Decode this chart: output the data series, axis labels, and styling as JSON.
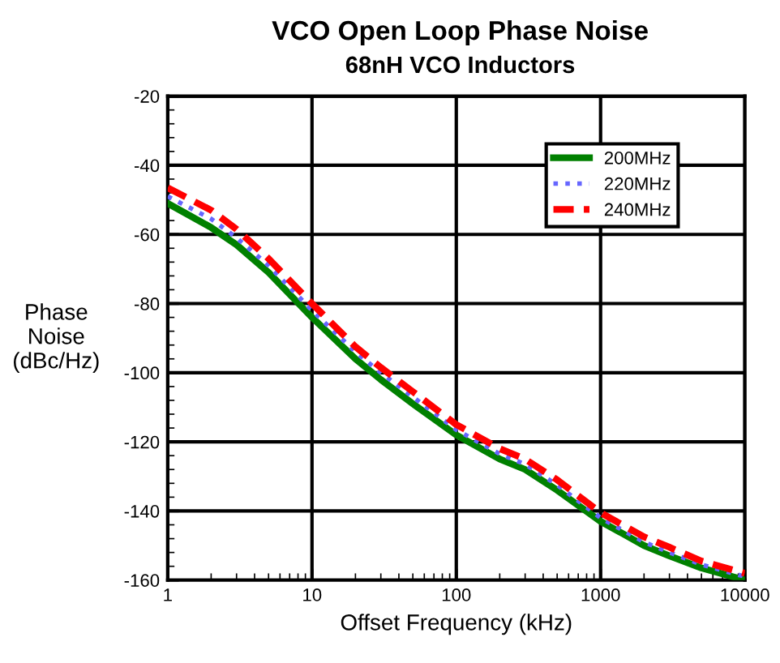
{
  "chart_data": {
    "type": "line",
    "title": "VCO Open Loop Phase Noise",
    "subtitle": "68nH VCO Inductors",
    "xlabel": "Offset Frequency (kHz)",
    "ylabel": "Phase\nNoise\n(dBc/Hz)",
    "log": "x",
    "x": [
      1,
      2,
      3,
      5,
      10,
      20,
      30,
      50,
      100,
      200,
      300,
      500,
      1000,
      2000,
      3000,
      5000,
      10000
    ],
    "series": [
      {
        "name": "200MHz",
        "color": "#008000",
        "line_style": "solid",
        "values": [
          -51,
          -58,
          -63,
          -71,
          -84,
          -96,
          -102,
          -109,
          -118,
          -125,
          -128,
          -134,
          -143,
          -150,
          -153,
          -156.5,
          -160
        ]
      },
      {
        "name": "220MHz",
        "color": "#6666ff",
        "line_style": "dotted",
        "values": [
          -49,
          -55.5,
          -61,
          -69,
          -82,
          -94,
          -100,
          -107,
          -116.5,
          -123.5,
          -126.5,
          -132.5,
          -142,
          -149,
          -152,
          -155.5,
          -159
        ]
      },
      {
        "name": "240MHz",
        "color": "#ff0000",
        "line_style": "dashed",
        "values": [
          -46.5,
          -53,
          -58.5,
          -67,
          -80,
          -92.5,
          -98.5,
          -105.5,
          -115,
          -122,
          -125,
          -131,
          -140.5,
          -147.5,
          -150.5,
          -154.5,
          -158
        ]
      }
    ],
    "xlim": [
      1,
      10000
    ],
    "xticks": [
      1,
      10,
      100,
      1000,
      10000
    ],
    "ylim": [
      -160,
      -20
    ],
    "yticks": [
      -160,
      -140,
      -120,
      -100,
      -80,
      -60,
      -40,
      -20
    ],
    "grid": true,
    "legend": "top right"
  }
}
